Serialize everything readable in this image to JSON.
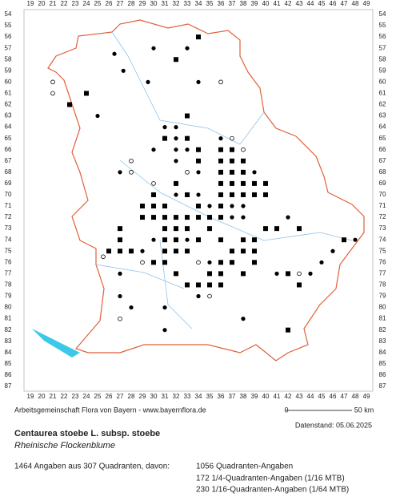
{
  "axes": {
    "columns": [
      19,
      20,
      21,
      22,
      23,
      24,
      25,
      26,
      27,
      28,
      29,
      30,
      31,
      32,
      33,
      34,
      35,
      36,
      37,
      38,
      39,
      40,
      41,
      42,
      43,
      44,
      45,
      46,
      47,
      48,
      49
    ],
    "rows": [
      54,
      55,
      56,
      57,
      58,
      59,
      60,
      61,
      62,
      63,
      64,
      65,
      66,
      67,
      68,
      69,
      70,
      71,
      72,
      73,
      74,
      75,
      76,
      77,
      78,
      79,
      80,
      81,
      82,
      83,
      84,
      85,
      86,
      87
    ]
  },
  "markers": [
    [
      34,
      56,
      "q"
    ],
    [
      33,
      57,
      "d"
    ],
    [
      30,
      57,
      "d"
    ],
    [
      26.5,
      57.5,
      "d"
    ],
    [
      32,
      58,
      "q"
    ],
    [
      27.3,
      59,
      "d"
    ],
    [
      29.5,
      60,
      "d"
    ],
    [
      34,
      60,
      "d"
    ],
    [
      36,
      60,
      "o"
    ],
    [
      24,
      61,
      "q"
    ],
    [
      21,
      61,
      "o"
    ],
    [
      21,
      60,
      "o"
    ],
    [
      22.5,
      62,
      "q"
    ],
    [
      25,
      63,
      "d"
    ],
    [
      33,
      63,
      "q"
    ],
    [
      31,
      64,
      "d"
    ],
    [
      32,
      64,
      "d"
    ],
    [
      31,
      65,
      "q"
    ],
    [
      32,
      65,
      "d"
    ],
    [
      33,
      65,
      "q"
    ],
    [
      36,
      65,
      "d"
    ],
    [
      37,
      65,
      "o"
    ],
    [
      30,
      66,
      "d"
    ],
    [
      32,
      66,
      "d"
    ],
    [
      33,
      66,
      "d"
    ],
    [
      34,
      66,
      "q"
    ],
    [
      36,
      66,
      "q"
    ],
    [
      37,
      66,
      "q"
    ],
    [
      38,
      66,
      "o"
    ],
    [
      28,
      67,
      "o"
    ],
    [
      32,
      67,
      "d"
    ],
    [
      34,
      67,
      "q"
    ],
    [
      36,
      67,
      "q"
    ],
    [
      37,
      67,
      "q"
    ],
    [
      38,
      67,
      "q"
    ],
    [
      27,
      68,
      "d"
    ],
    [
      28,
      68,
      "o"
    ],
    [
      33,
      68,
      "o"
    ],
    [
      34,
      68,
      "d"
    ],
    [
      36,
      68,
      "q"
    ],
    [
      37,
      68,
      "q"
    ],
    [
      38,
      68,
      "q"
    ],
    [
      39,
      68,
      "d"
    ],
    [
      30,
      69,
      "o"
    ],
    [
      32,
      69,
      "q"
    ],
    [
      36,
      69,
      "q"
    ],
    [
      37,
      69,
      "q"
    ],
    [
      38,
      69,
      "q"
    ],
    [
      39,
      69,
      "q"
    ],
    [
      40,
      69,
      "q"
    ],
    [
      30,
      70,
      "q"
    ],
    [
      32,
      70,
      "d"
    ],
    [
      33,
      70,
      "q"
    ],
    [
      34,
      70,
      "d"
    ],
    [
      36,
      70,
      "q"
    ],
    [
      37,
      70,
      "q"
    ],
    [
      38,
      70,
      "q"
    ],
    [
      39,
      70,
      "q"
    ],
    [
      40,
      70,
      "q"
    ],
    [
      29,
      71,
      "q"
    ],
    [
      30,
      71,
      "q"
    ],
    [
      31,
      71,
      "q"
    ],
    [
      34,
      71,
      "q"
    ],
    [
      35,
      71,
      "d"
    ],
    [
      36,
      71,
      "q"
    ],
    [
      37,
      71,
      "d"
    ],
    [
      38,
      71,
      "d"
    ],
    [
      29,
      72,
      "q"
    ],
    [
      30,
      72,
      "q"
    ],
    [
      31,
      72,
      "q"
    ],
    [
      32,
      72,
      "q"
    ],
    [
      33,
      72,
      "q"
    ],
    [
      34,
      72,
      "q"
    ],
    [
      35,
      72,
      "q"
    ],
    [
      36,
      72,
      "q"
    ],
    [
      37,
      72,
      "d"
    ],
    [
      38,
      72,
      "d"
    ],
    [
      42,
      72,
      "d"
    ],
    [
      27,
      73,
      "q"
    ],
    [
      31,
      73,
      "q"
    ],
    [
      32,
      73,
      "q"
    ],
    [
      33,
      73,
      "q"
    ],
    [
      35,
      73,
      "q"
    ],
    [
      40,
      73,
      "q"
    ],
    [
      41,
      73,
      "q"
    ],
    [
      43,
      73,
      "q"
    ],
    [
      27,
      74,
      "q"
    ],
    [
      30,
      74,
      "d"
    ],
    [
      31,
      74,
      "q"
    ],
    [
      32,
      74,
      "q"
    ],
    [
      33,
      74,
      "d"
    ],
    [
      34,
      74,
      "q"
    ],
    [
      36,
      74,
      "q"
    ],
    [
      38,
      74,
      "q"
    ],
    [
      39,
      74,
      "q"
    ],
    [
      47,
      74,
      "q"
    ],
    [
      48,
      74,
      "d"
    ],
    [
      26,
      75,
      "q"
    ],
    [
      27,
      75,
      "q"
    ],
    [
      28,
      75,
      "q"
    ],
    [
      29,
      75,
      "d"
    ],
    [
      31,
      75,
      "q"
    ],
    [
      32,
      75,
      "q"
    ],
    [
      33,
      75,
      "q"
    ],
    [
      37,
      75,
      "q"
    ],
    [
      38,
      75,
      "q"
    ],
    [
      39,
      75,
      "q"
    ],
    [
      46,
      75,
      "d"
    ],
    [
      25.5,
      75.5,
      "o"
    ],
    [
      29,
      76,
      "o"
    ],
    [
      30,
      76,
      "q"
    ],
    [
      31,
      76,
      "q"
    ],
    [
      34,
      76,
      "o"
    ],
    [
      35,
      76,
      "d"
    ],
    [
      36,
      76,
      "q"
    ],
    [
      37,
      76,
      "q"
    ],
    [
      39,
      76,
      "q"
    ],
    [
      45,
      76,
      "d"
    ],
    [
      27,
      77,
      "d"
    ],
    [
      32,
      77,
      "q"
    ],
    [
      35,
      77,
      "q"
    ],
    [
      36,
      77,
      "q"
    ],
    [
      38,
      77,
      "q"
    ],
    [
      41,
      77,
      "d"
    ],
    [
      42,
      77,
      "q"
    ],
    [
      43,
      77,
      "o"
    ],
    [
      44,
      77,
      "d"
    ],
    [
      33,
      78,
      "q"
    ],
    [
      34,
      78,
      "q"
    ],
    [
      35,
      78,
      "q"
    ],
    [
      36,
      78,
      "q"
    ],
    [
      43,
      78,
      "q"
    ],
    [
      27,
      79,
      "d"
    ],
    [
      34,
      79,
      "d"
    ],
    [
      35,
      79,
      "o"
    ],
    [
      28,
      80,
      "d"
    ],
    [
      31,
      80,
      "d"
    ],
    [
      27,
      81,
      "o"
    ],
    [
      38,
      81,
      "d"
    ],
    [
      31,
      82,
      "d"
    ],
    [
      42,
      82,
      "q"
    ]
  ],
  "scale": {
    "start": "0",
    "end": "50 km"
  },
  "footer": {
    "credit": "Arbeitsgemeinschaft Flora von Bayern - www.bayernflora.de",
    "date": "Datenstand: 05.06.2025",
    "title": "Centaurea stoebe L. subsp. stoebe",
    "subtitle": "Rheinische Flockenblume",
    "summary": "1464 Angaben aus 307 Quadranten, davon:",
    "details": [
      "1056 Quadranten-Angaben",
      "172 1/4-Quadranten-Angaben (1/16 MTB)",
      "230 1/16-Quadranten-Angaben (1/64 MTB)"
    ]
  }
}
